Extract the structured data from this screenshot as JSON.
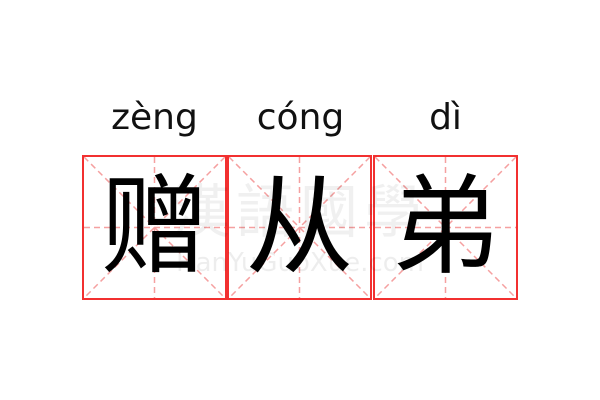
{
  "entries": [
    {
      "pinyin": "zèng",
      "char": "赠"
    },
    {
      "pinyin": "cóng",
      "char": "从"
    },
    {
      "pinyin": "dì",
      "char": "弟"
    }
  ],
  "watermark": {
    "cn": "漢語國學",
    "en": "HanYuGuoXue.com"
  },
  "colors": {
    "grid_border": "#f23030",
    "guide_lines": "#f5a0a0",
    "text": "#000000"
  }
}
